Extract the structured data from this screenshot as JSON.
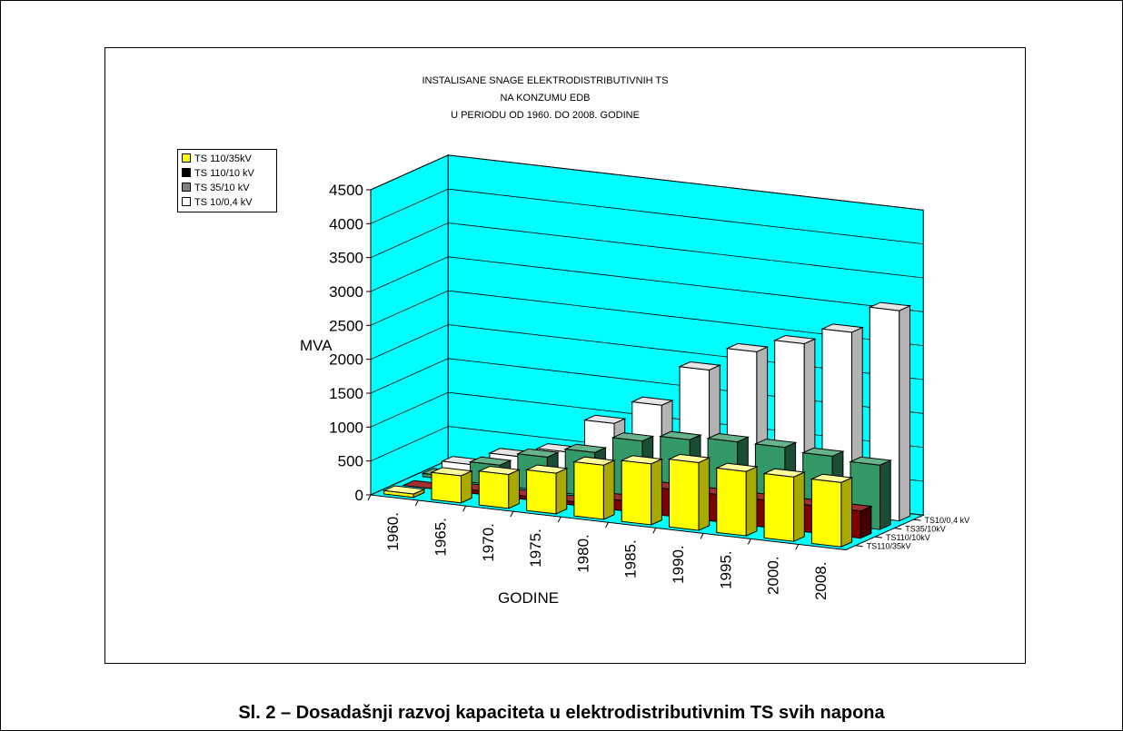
{
  "chart_data": {
    "type": "bar",
    "title_lines": [
      "INSTALISANE SNAGE ELEKTRODISTRIBUTIVNIH TS",
      "NA KONZUMU EDB",
      "U PERIODU OD 1960. DO 2008. GODINE"
    ],
    "categories": [
      "1960.",
      "1965.",
      "1970.",
      "1975.",
      "1980.",
      "1985.",
      "1990.",
      "1995.",
      "2000.",
      "2008."
    ],
    "series": [
      {
        "name": "TS 110/35kV",
        "depth_label": "TS110/35kV",
        "color": "#ffff00",
        "side": "#a8a800",
        "top": "#ffff99",
        "values": [
          50,
          400,
          500,
          600,
          800,
          900,
          1000,
          950,
          950,
          950
        ]
      },
      {
        "name": "TS 110/10 kV",
        "depth_label": "TS110/10kV",
        "color": "#800000",
        "side": "#400000",
        "top": "#a03030",
        "values": [
          0,
          50,
          50,
          50,
          150,
          400,
          400,
          400,
          400,
          400
        ]
      },
      {
        "name": "TS 35/10 kV",
        "depth_label": "TS35/10kV",
        "color": "#339966",
        "side": "#1a4d33",
        "top": "#66b38c",
        "values": [
          50,
          300,
          500,
          650,
          900,
          1000,
          1050,
          1050,
          1000,
          950
        ]
      },
      {
        "name": "TS 10/0,4 kV",
        "depth_label": "TS10/0,4 kV",
        "color": "#ffffff",
        "side": "#b3b3b3",
        "top": "#e6e6e6",
        "values": [
          100,
          300,
          450,
          950,
          1300,
          1900,
          2250,
          2450,
          2700,
          3100
        ]
      }
    ],
    "yticks": [
      "4500",
      "4000",
      "3500",
      "3000",
      "2500",
      "2000",
      "1500",
      "1000",
      "500",
      "0"
    ],
    "ylim": [
      0,
      4500
    ],
    "ylabel": "MVA",
    "xlabel": "GODINE",
    "grid": true,
    "legend_position": "top-left",
    "wall_color": "#00ffff",
    "floor_color": "#00ffff"
  },
  "caption": "Sl. 2 – Dosadašnji razvoj kapaciteta u elektrodistributivnim TS svih napona"
}
